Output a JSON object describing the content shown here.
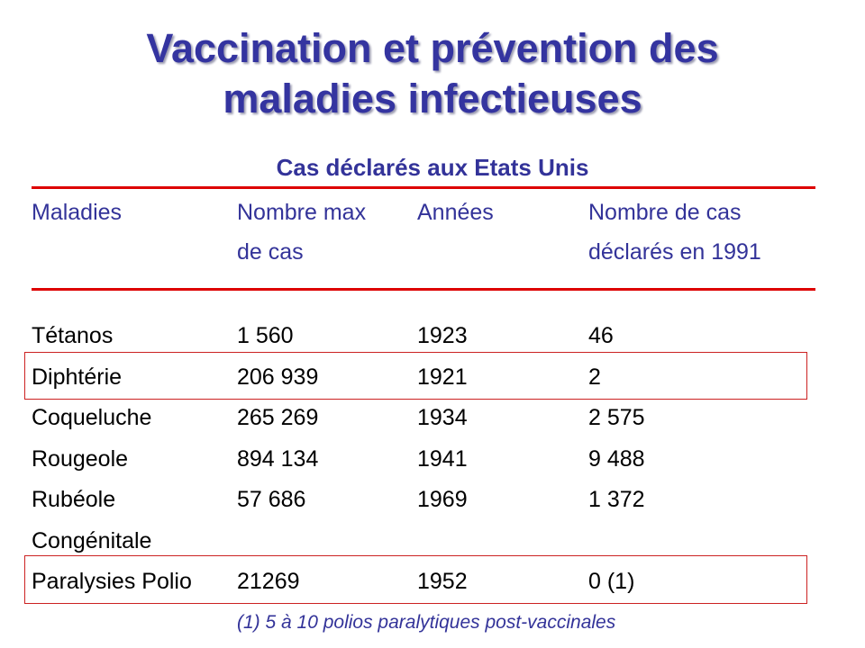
{
  "title": [
    "Vaccination et prévention des",
    "maladies infectieuses"
  ],
  "subtitle": "Cas déclarés aux Etats Unis",
  "headers": [
    [
      "Maladies",
      ""
    ],
    [
      "Nombre max",
      "de cas"
    ],
    [
      "Années",
      ""
    ],
    [
      "Nombre de cas",
      "déclarés en 1991"
    ]
  ],
  "rows": [
    [
      "Tétanos",
      "1 560",
      "1923",
      "46"
    ],
    [
      "Diphtérie",
      "206 939",
      "1921",
      "2"
    ],
    [
      "Coqueluche",
      "265 269",
      "1934",
      "2 575"
    ],
    [
      "Rougeole",
      "894 134",
      "1941",
      "9 488"
    ],
    [
      "Rubéole",
      "57 686",
      "1969",
      "1 372"
    ],
    [
      "Congénitale",
      "",
      "",
      ""
    ],
    [
      "Paralysies Polio",
      "21269",
      "1952",
      "0 (1)"
    ]
  ],
  "highlighted_rows": [
    "Diphtérie",
    "Paralysies Polio"
  ],
  "footnote": "(1) 5 à 10 polios paralytiques post-vaccinales",
  "colors": {
    "title": "#3434a0",
    "header": "#333399",
    "rule": "#dd0000",
    "highlight_box": "#cc2222"
  }
}
